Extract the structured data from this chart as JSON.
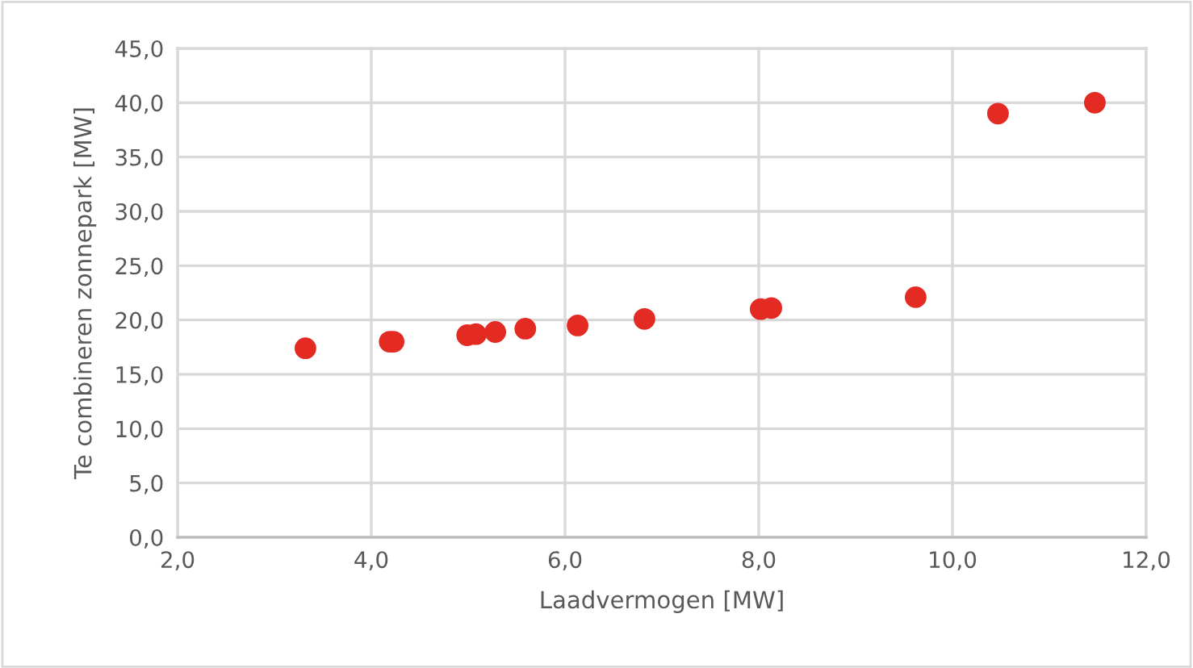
{
  "chart_data": {
    "type": "scatter",
    "xlabel": "Laadvermogen [MW]",
    "ylabel": "Te combineren zonnepark [MW]",
    "x": [
      3.32,
      4.19,
      4.23,
      4.99,
      5.08,
      5.28,
      5.59,
      6.13,
      6.82,
      8.02,
      8.13,
      9.62,
      10.47,
      11.47
    ],
    "series": [
      {
        "color": "#e32b24",
        "values": [
          17.4,
          18.0,
          18.0,
          18.6,
          18.7,
          18.9,
          19.2,
          19.5,
          20.1,
          21.0,
          21.1,
          22.1,
          39.0,
          40.0
        ]
      }
    ],
    "marker": "circle",
    "grid": true,
    "legend": false,
    "xlim": [
      2,
      12
    ],
    "xticks": [
      {
        "value": 2,
        "label": "2,0"
      },
      {
        "value": 4,
        "label": "4,0"
      },
      {
        "value": 6,
        "label": "6,0"
      },
      {
        "value": 8,
        "label": "8,0"
      },
      {
        "value": 10,
        "label": "10,0"
      },
      {
        "value": 12,
        "label": "12,0"
      }
    ],
    "ylim": [
      0,
      45
    ],
    "yticks": [
      {
        "value": 0,
        "label": "0,0"
      },
      {
        "value": 5,
        "label": "5,0"
      },
      {
        "value": 10,
        "label": "10,0"
      },
      {
        "value": 15,
        "label": "15,0"
      },
      {
        "value": 20,
        "label": "20,0"
      },
      {
        "value": 25,
        "label": "25,0"
      },
      {
        "value": 30,
        "label": "30,0"
      },
      {
        "value": 35,
        "label": "35,0"
      },
      {
        "value": 40,
        "label": "40,0"
      },
      {
        "value": 45,
        "label": "45,0"
      }
    ]
  }
}
